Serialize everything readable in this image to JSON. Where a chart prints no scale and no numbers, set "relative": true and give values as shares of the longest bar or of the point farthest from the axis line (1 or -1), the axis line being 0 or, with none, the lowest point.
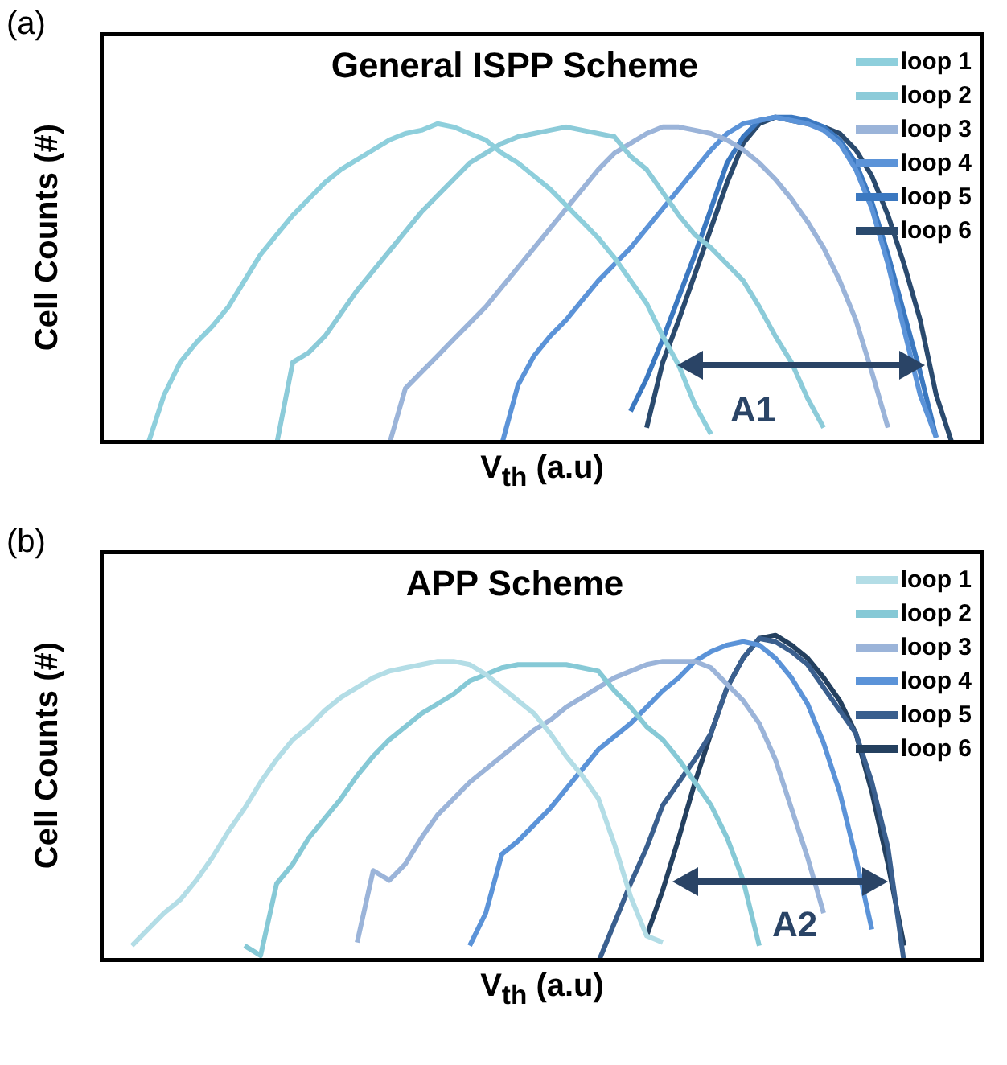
{
  "chart_data": [
    {
      "type": "line",
      "title": "General ISPP Scheme",
      "xlabel": "V$_{th}$ (a.u)",
      "ylabel": "Cell Counts (#)",
      "relative": true,
      "legend": "top right",
      "annotations": [
        "(a)",
        "A1"
      ],
      "categories": [
        null,
        null,
        null,
        null,
        null,
        null,
        null,
        null,
        null,
        null,
        null,
        null,
        null,
        null,
        null,
        null,
        null,
        null,
        null,
        null,
        null,
        null,
        null,
        null,
        null,
        null,
        null,
        null,
        null,
        null,
        null,
        null,
        null,
        null,
        null,
        null,
        null,
        null,
        null,
        null,
        null,
        null,
        null,
        null,
        null,
        null,
        null,
        null,
        null,
        null,
        null,
        null,
        null,
        null,
        null,
        null
      ],
      "series": [
        {
          "name": "loop 1",
          "color": "#8ecfdc",
          "values": [
            null,
            null,
            null,
            0.0,
            0.15,
            0.25,
            0.31,
            0.36,
            0.42,
            0.5,
            0.58,
            0.64,
            0.7,
            0.75,
            0.8,
            0.84,
            0.87,
            0.9,
            0.93,
            0.95,
            0.96,
            0.98,
            0.97,
            0.95,
            0.93,
            0.89,
            0.86,
            0.82,
            0.78,
            0.73,
            0.68,
            0.63,
            0.57,
            0.5,
            0.43,
            0.33,
            0.24,
            0.12,
            0.03,
            null,
            null,
            null,
            null,
            null,
            null,
            null,
            null,
            null,
            null,
            null,
            null,
            null,
            null,
            null,
            null,
            null
          ]
        },
        {
          "name": "loop 2",
          "color": "#8ccbd9",
          "values": [
            null,
            null,
            null,
            null,
            null,
            null,
            null,
            null,
            null,
            null,
            null,
            0.0,
            0.25,
            0.28,
            0.33,
            0.4,
            0.47,
            0.53,
            0.59,
            0.65,
            0.71,
            0.76,
            0.81,
            0.86,
            0.89,
            0.92,
            0.94,
            0.95,
            0.96,
            0.97,
            0.96,
            0.95,
            0.94,
            0.88,
            0.84,
            0.77,
            0.7,
            0.64,
            0.6,
            0.55,
            0.5,
            0.42,
            0.33,
            0.25,
            0.14,
            0.05,
            null,
            null,
            null,
            null,
            null,
            null,
            null,
            null,
            null,
            null
          ]
        },
        {
          "name": "loop 3",
          "color": "#9bb4d9",
          "values": [
            null,
            null,
            null,
            null,
            null,
            null,
            null,
            null,
            null,
            null,
            null,
            null,
            null,
            null,
            null,
            null,
            null,
            null,
            0.0,
            0.17,
            0.22,
            0.27,
            0.32,
            0.37,
            0.42,
            0.48,
            0.54,
            0.6,
            0.66,
            0.72,
            0.78,
            0.84,
            0.89,
            0.92,
            0.95,
            0.97,
            0.97,
            0.96,
            0.95,
            0.93,
            0.9,
            0.86,
            0.81,
            0.75,
            0.68,
            0.6,
            0.5,
            0.38,
            0.22,
            0.05,
            null,
            null,
            null,
            null,
            null,
            null
          ]
        },
        {
          "name": "loop 4",
          "color": "#5b93d8",
          "values": [
            null,
            null,
            null,
            null,
            null,
            null,
            null,
            null,
            null,
            null,
            null,
            null,
            null,
            null,
            null,
            null,
            null,
            null,
            null,
            null,
            null,
            null,
            null,
            null,
            null,
            0.0,
            0.18,
            0.27,
            0.33,
            0.38,
            0.44,
            0.5,
            0.55,
            0.6,
            0.66,
            0.72,
            0.78,
            0.84,
            0.9,
            0.95,
            0.98,
            0.99,
            1.0,
            0.99,
            0.98,
            0.96,
            0.92,
            0.84,
            0.72,
            0.55,
            0.35,
            0.15,
            0.02,
            null,
            null,
            null
          ]
        },
        {
          "name": "loop 5",
          "color": "#3b78c0",
          "values": [
            null,
            null,
            null,
            null,
            null,
            null,
            null,
            null,
            null,
            null,
            null,
            null,
            null,
            null,
            null,
            null,
            null,
            null,
            null,
            null,
            null,
            null,
            null,
            null,
            null,
            null,
            null,
            null,
            null,
            null,
            null,
            null,
            null,
            0.1,
            0.2,
            0.32,
            0.45,
            0.58,
            0.72,
            0.86,
            0.94,
            0.99,
            1.0,
            1.0,
            0.99,
            0.97,
            0.93,
            0.86,
            0.74,
            0.58,
            0.4,
            0.22,
            0.02,
            null,
            null,
            null
          ]
        },
        {
          "name": "loop 6",
          "color": "#2a4a6e",
          "values": [
            null,
            null,
            null,
            null,
            null,
            null,
            null,
            null,
            null,
            null,
            null,
            null,
            null,
            null,
            null,
            null,
            null,
            null,
            null,
            null,
            null,
            null,
            null,
            null,
            null,
            null,
            null,
            null,
            null,
            null,
            null,
            null,
            null,
            null,
            0.05,
            0.25,
            0.38,
            0.52,
            0.66,
            0.8,
            0.92,
            0.98,
            1.0,
            0.99,
            0.98,
            0.97,
            0.95,
            0.9,
            0.82,
            0.7,
            0.55,
            0.38,
            0.15,
            0.0,
            null,
            null
          ]
        }
      ]
    },
    {
      "type": "line",
      "title": "APP Scheme",
      "xlabel": "V$_{th}$ (a.u)",
      "ylabel": "Cell Counts (#)",
      "relative": true,
      "legend": "top right",
      "annotations": [
        "(b)",
        "A2"
      ],
      "categories": [
        null,
        null,
        null,
        null,
        null,
        null,
        null,
        null,
        null,
        null,
        null,
        null,
        null,
        null,
        null,
        null,
        null,
        null,
        null,
        null,
        null,
        null,
        null,
        null,
        null,
        null,
        null,
        null,
        null,
        null,
        null,
        null,
        null,
        null,
        null,
        null,
        null,
        null,
        null,
        null,
        null,
        null,
        null,
        null,
        null,
        null,
        null,
        null,
        null,
        null,
        null,
        null,
        null,
        null,
        null,
        null
      ],
      "series": [
        {
          "name": "loop 1",
          "color": "#b3dde6",
          "values": [
            null,
            null,
            0.05,
            0.1,
            0.15,
            0.19,
            0.25,
            0.32,
            0.4,
            0.47,
            0.55,
            0.62,
            0.68,
            0.72,
            0.77,
            0.81,
            0.84,
            0.87,
            0.89,
            0.9,
            0.91,
            0.92,
            0.92,
            0.91,
            0.88,
            0.84,
            0.8,
            0.76,
            0.7,
            0.63,
            0.57,
            0.5,
            0.36,
            0.2,
            0.08,
            0.06,
            null,
            null,
            null,
            null,
            null,
            null,
            null,
            null,
            null,
            null,
            null,
            null,
            null,
            null,
            null,
            null,
            null,
            null,
            null,
            null
          ]
        },
        {
          "name": "loop 2",
          "color": "#86c9d6",
          "values": [
            null,
            null,
            null,
            null,
            null,
            null,
            null,
            null,
            null,
            0.05,
            0.02,
            0.24,
            0.3,
            0.38,
            0.44,
            0.5,
            0.57,
            0.63,
            0.68,
            0.72,
            0.76,
            0.79,
            0.82,
            0.86,
            0.88,
            0.9,
            0.91,
            0.91,
            0.91,
            0.91,
            0.9,
            0.89,
            0.83,
            0.78,
            0.72,
            0.68,
            0.62,
            0.55,
            0.48,
            0.38,
            0.25,
            0.05,
            null,
            null,
            null,
            null,
            null,
            null,
            null,
            null,
            null,
            null,
            null,
            null,
            null,
            null
          ]
        },
        {
          "name": "loop 3",
          "color": "#9bb4d9",
          "values": [
            null,
            null,
            null,
            null,
            null,
            null,
            null,
            null,
            null,
            null,
            null,
            null,
            null,
            null,
            null,
            null,
            0.06,
            0.28,
            0.25,
            0.3,
            0.38,
            0.45,
            0.5,
            0.55,
            0.59,
            0.63,
            0.67,
            0.71,
            0.74,
            0.78,
            0.81,
            0.84,
            0.87,
            0.89,
            0.91,
            0.92,
            0.92,
            0.92,
            0.9,
            0.85,
            0.8,
            0.73,
            0.62,
            0.47,
            0.32,
            0.15,
            null,
            null,
            null,
            null,
            null,
            null,
            null,
            null,
            null,
            null
          ]
        },
        {
          "name": "loop 4",
          "color": "#5b93d8",
          "values": [
            null,
            null,
            null,
            null,
            null,
            null,
            null,
            null,
            null,
            null,
            null,
            null,
            null,
            null,
            null,
            null,
            null,
            null,
            null,
            null,
            null,
            null,
            null,
            0.05,
            0.15,
            0.33,
            0.37,
            0.42,
            0.47,
            0.53,
            0.59,
            0.65,
            0.69,
            0.73,
            0.78,
            0.83,
            0.87,
            0.92,
            0.95,
            0.97,
            0.98,
            0.97,
            0.93,
            0.87,
            0.79,
            0.67,
            0.52,
            0.32,
            0.1,
            null,
            null,
            null,
            null,
            null,
            null,
            null
          ]
        },
        {
          "name": "loop 5",
          "color": "#3a5f8e",
          "values": [
            null,
            null,
            null,
            null,
            null,
            null,
            null,
            null,
            null,
            null,
            null,
            null,
            null,
            null,
            null,
            null,
            null,
            null,
            null,
            null,
            null,
            null,
            null,
            null,
            null,
            null,
            null,
            null,
            null,
            null,
            null,
            0.0,
            0.12,
            0.24,
            0.35,
            0.48,
            0.55,
            0.62,
            0.7,
            0.84,
            0.93,
            0.99,
            0.98,
            0.95,
            0.91,
            0.84,
            0.77,
            0.7,
            0.55,
            0.35,
            0.0,
            null,
            null,
            null,
            null,
            null
          ]
        },
        {
          "name": "loop 6",
          "color": "#24405f",
          "values": [
            null,
            null,
            null,
            null,
            null,
            null,
            null,
            null,
            null,
            null,
            null,
            null,
            null,
            null,
            null,
            null,
            null,
            null,
            null,
            null,
            null,
            null,
            null,
            null,
            null,
            null,
            null,
            null,
            null,
            null,
            null,
            null,
            null,
            null,
            0.08,
            0.22,
            0.38,
            0.55,
            0.7,
            0.84,
            0.93,
            0.99,
            1.0,
            0.97,
            0.93,
            0.87,
            0.8,
            0.7,
            0.52,
            0.3,
            0.05,
            null,
            null,
            null,
            null,
            null
          ]
        }
      ]
    }
  ]
}
